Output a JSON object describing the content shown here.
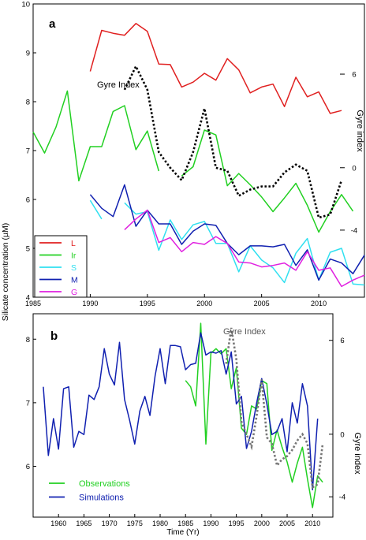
{
  "figure": {
    "shared_ylabel": "Silicate concentration (µM)"
  },
  "chart_data": [
    {
      "panel": "a",
      "type": "line",
      "xlim": [
        1985,
        2014
      ],
      "ylim": [
        4,
        10
      ],
      "ylim_right": [
        -8.3,
        10.5
      ],
      "x_ticks": [
        1985,
        1990,
        1995,
        2000,
        2005,
        2010
      ],
      "y_ticks": [
        4,
        5,
        6,
        7,
        8,
        9,
        10
      ],
      "y_ticks_right": [
        6,
        0,
        -4
      ],
      "y_ticks_right_labels": [
        "6",
        "0",
        "-4"
      ],
      "ylabel_right": "Gyre index",
      "annotation": "Gyre Index",
      "legend_position": "bottom-left",
      "grid": false,
      "series": [
        {
          "name": "L",
          "color": "#e02020",
          "x": [
            1990,
            1991,
            1992,
            1993,
            1994,
            1995,
            1996,
            1997,
            1998,
            1999,
            2000,
            2001,
            2002,
            2003,
            2004,
            2005,
            2006,
            2007,
            2008,
            2009,
            2010,
            2011,
            2012
          ],
          "values": [
            8.62,
            9.46,
            9.4,
            9.36,
            9.6,
            9.44,
            8.77,
            8.76,
            8.3,
            8.4,
            8.58,
            8.44,
            8.88,
            8.65,
            8.18,
            8.3,
            8.36,
            7.9,
            8.5,
            8.1,
            8.2,
            7.76,
            7.82
          ]
        },
        {
          "name": "Ir",
          "color": "#22d022",
          "x": [
            1985,
            1986,
            1987,
            1988,
            1989,
            1990,
            1991,
            1992,
            1993,
            1994,
            1995,
            1996,
            null,
            1998,
            1999,
            2000,
            2001,
            2002,
            2003,
            2004,
            2005,
            2006,
            2007,
            2008,
            2009,
            2010,
            2011,
            2012,
            2013
          ],
          "values": [
            7.38,
            6.95,
            7.48,
            8.22,
            6.38,
            7.08,
            7.08,
            7.8,
            7.92,
            7.02,
            7.4,
            6.58,
            null,
            6.48,
            6.67,
            7.42,
            7.32,
            6.28,
            6.53,
            6.3,
            6.05,
            5.75,
            6.03,
            6.33,
            5.88,
            5.33,
            5.75,
            6.1,
            5.76
          ]
        },
        {
          "name": "S",
          "color": "#30e0f0",
          "x": [
            1990,
            1991,
            null,
            1993,
            1994,
            1995,
            1996,
            1997,
            1998,
            1999,
            2000,
            2001,
            2002,
            2003,
            2004,
            2005,
            2006,
            2007,
            2008,
            2009,
            2010,
            2011,
            2012,
            2013,
            2014
          ],
          "values": [
            5.98,
            5.6,
            null,
            5.93,
            5.7,
            5.75,
            4.96,
            5.58,
            5.18,
            5.48,
            5.55,
            5.1,
            5.1,
            4.52,
            5.05,
            4.76,
            4.6,
            4.3,
            4.9,
            5.2,
            4.35,
            4.92,
            5.0,
            4.27,
            4.25
          ]
        },
        {
          "name": "M",
          "color": "#1020b0",
          "x": [
            1990,
            1991,
            1992,
            1993,
            1994,
            1995,
            1996,
            1997,
            1998,
            1999,
            2000,
            2001,
            2002,
            2003,
            2004,
            2005,
            2006,
            2007,
            2008,
            2009,
            2010,
            2011,
            2012,
            2013,
            2014
          ],
          "values": [
            6.1,
            5.82,
            5.65,
            6.3,
            5.45,
            5.78,
            5.5,
            5.5,
            5.08,
            5.35,
            5.5,
            5.47,
            5.1,
            4.87,
            5.05,
            5.05,
            5.03,
            5.08,
            4.65,
            4.97,
            4.35,
            4.78,
            4.7,
            4.48,
            4.86
          ]
        },
        {
          "name": "G",
          "color": "#e020e0",
          "x": [
            1993,
            1994,
            1995,
            1996,
            1997,
            1998,
            1999,
            2000,
            2001,
            2002,
            2003,
            2004,
            2005,
            2006,
            2007,
            2008,
            2009,
            2010,
            2011,
            2012,
            2013,
            2014
          ],
          "values": [
            5.38,
            5.6,
            5.78,
            5.12,
            5.22,
            4.93,
            5.12,
            5.08,
            5.24,
            5.1,
            4.72,
            4.7,
            4.62,
            4.65,
            4.7,
            4.55,
            4.93,
            4.55,
            4.6,
            4.22,
            4.35,
            4.45
          ]
        }
      ],
      "gyre_index": {
        "name": "Gyre Index",
        "color": "#000000",
        "dashed": true,
        "axis": "right",
        "x": [
          1993,
          1994,
          1995,
          1996,
          1997,
          1998,
          1999,
          2000,
          2001,
          2002,
          2003,
          2004,
          2005,
          2006,
          2007,
          2008,
          2009,
          2010,
          2011,
          2012
        ],
        "values": [
          5.0,
          6.5,
          5.0,
          1.0,
          0.0,
          -0.8,
          1.0,
          3.8,
          0.0,
          -0.2,
          -1.8,
          -1.4,
          -1.2,
          -1.2,
          -0.3,
          0.2,
          -0.2,
          -3.2,
          -3.0,
          -0.8
        ]
      }
    },
    {
      "panel": "b",
      "type": "line",
      "xlim": [
        1955,
        2014
      ],
      "ylim": [
        5.2,
        8.4
      ],
      "ylim_right": [
        -5.3,
        7.7
      ],
      "x_ticks": [
        1960,
        1965,
        1970,
        1975,
        1980,
        1985,
        1990,
        1995,
        2000,
        2005,
        2010
      ],
      "y_ticks": [
        6,
        7,
        8
      ],
      "y_ticks_right": [
        6,
        0,
        -4
      ],
      "y_ticks_right_labels": [
        "6",
        "0",
        "-4"
      ],
      "xlabel": "Time (Yr)",
      "ylabel_right": "Gyre index",
      "annotation": "Gyre Index",
      "legend_position": "bottom-left",
      "grid": false,
      "series": [
        {
          "name": "Observations",
          "color": "#22d022",
          "x": [
            1985,
            1986,
            1987,
            1988,
            1989,
            1990,
            1991,
            1992,
            1993,
            1994,
            1995,
            1996,
            1997,
            1998,
            1999,
            2000,
            2001,
            2002,
            2003,
            2004,
            2005,
            2006,
            2007,
            2008,
            2009,
            2010,
            2011,
            2012
          ],
          "values": [
            7.35,
            7.25,
            6.95,
            8.25,
            6.35,
            7.78,
            7.85,
            7.77,
            7.85,
            7.22,
            7.55,
            6.6,
            6.5,
            6.95,
            6.9,
            7.35,
            7.3,
            6.25,
            6.57,
            6.3,
            6.07,
            5.75,
            6.05,
            6.3,
            5.8,
            5.35,
            5.85,
            5.75
          ]
        },
        {
          "name": "Simulations",
          "color": "#1020b0",
          "x": [
            1957,
            1958,
            1959,
            1960,
            1961,
            1962,
            1963,
            1964,
            1965,
            1966,
            1967,
            1968,
            1969,
            1970,
            1971,
            1972,
            1973,
            1974,
            1975,
            1976,
            1977,
            1978,
            1979,
            1980,
            1981,
            1982,
            1983,
            1984,
            1985,
            1986,
            1987,
            1988,
            1989,
            1990,
            1991,
            1992,
            1993,
            1994,
            1995,
            1996,
            1997,
            1998,
            1999,
            2000,
            2001,
            2002,
            2003,
            2004,
            2005,
            2006,
            2007,
            2008,
            2009,
            2010,
            2011
          ],
          "values": [
            7.25,
            6.17,
            6.75,
            6.27,
            7.22,
            7.25,
            6.3,
            6.55,
            6.5,
            7.12,
            7.05,
            7.25,
            7.85,
            7.45,
            7.28,
            7.95,
            7.05,
            6.72,
            6.35,
            6.87,
            7.1,
            6.8,
            7.42,
            7.85,
            7.3,
            7.9,
            7.9,
            7.88,
            7.52,
            7.6,
            7.62,
            8.1,
            7.75,
            7.8,
            7.78,
            7.82,
            7.45,
            7.8,
            6.98,
            7.1,
            6.28,
            6.55,
            7.0,
            7.38,
            6.98,
            6.5,
            6.55,
            6.75,
            6.23,
            7.0,
            6.68,
            7.3,
            6.95,
            5.63,
            6.75
          ]
        }
      ],
      "gyre_index": {
        "name": "Gyre Index",
        "color": "#777777",
        "dashed": true,
        "axis": "right",
        "x": [
          1993,
          1994,
          1995,
          1996,
          1997,
          1998,
          1999,
          2000,
          2001,
          2002,
          2003,
          2004,
          2005,
          2006,
          2007,
          2008,
          2009,
          2010,
          2011,
          2012
        ],
        "values": [
          4.5,
          6.8,
          4.8,
          0.8,
          0.0,
          -0.8,
          1.2,
          3.5,
          -0.2,
          -0.6,
          -2.0,
          -1.6,
          -1.4,
          -1.0,
          -0.4,
          0.0,
          -0.6,
          -3.4,
          -3.2,
          -0.6
        ]
      }
    }
  ]
}
